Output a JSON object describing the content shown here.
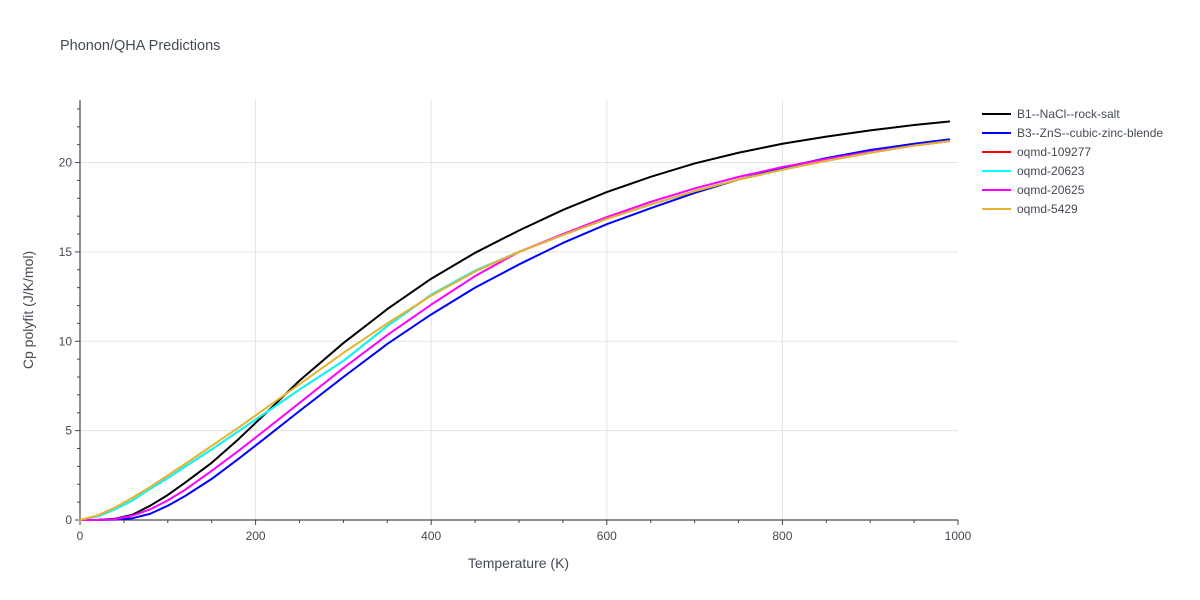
{
  "chart_data": {
    "type": "line",
    "title": "Phonon/QHA Predictions",
    "xlabel": "Temperature (K)",
    "ylabel": "Cp polyfit (J/K/mol)",
    "xlim": [
      0,
      1000
    ],
    "ylim": [
      0,
      23.5
    ],
    "xticks": [
      0,
      200,
      400,
      600,
      800,
      1000
    ],
    "xtick_labels": [
      "0",
      "200",
      "400",
      "600",
      "800",
      "1000"
    ],
    "yticks": [
      0,
      5,
      10,
      15,
      20
    ],
    "ytick_labels": [
      "0",
      "5",
      "10",
      "15",
      "20"
    ],
    "grid": true,
    "legend_position": "top-right",
    "series": [
      {
        "name": "B1--NaCl--rock-salt",
        "color": "#000000",
        "x": [
          0,
          20,
          40,
          60,
          80,
          100,
          120,
          150,
          180,
          210,
          250,
          300,
          350,
          400,
          450,
          500,
          550,
          600,
          650,
          700,
          750,
          800,
          850,
          900,
          950,
          990
        ],
        "y": [
          0,
          0.01,
          0.07,
          0.3,
          0.8,
          1.4,
          2.1,
          3.2,
          4.5,
          5.9,
          7.8,
          9.9,
          11.8,
          13.5,
          14.95,
          16.2,
          17.35,
          18.35,
          19.2,
          19.95,
          20.55,
          21.05,
          21.45,
          21.8,
          22.1,
          22.3
        ]
      },
      {
        "name": "B3--ZnS--cubic-zinc-blende",
        "color": "#0000ff",
        "x": [
          0,
          20,
          40,
          60,
          80,
          100,
          120,
          150,
          180,
          210,
          250,
          300,
          350,
          400,
          450,
          500,
          550,
          600,
          650,
          700,
          750,
          800,
          850,
          900,
          950,
          990
        ],
        "y": [
          0,
          0,
          0.02,
          0.1,
          0.35,
          0.8,
          1.35,
          2.3,
          3.4,
          4.55,
          6.1,
          8.0,
          9.85,
          11.5,
          13.0,
          14.3,
          15.5,
          16.55,
          17.45,
          18.3,
          19.05,
          19.7,
          20.25,
          20.7,
          21.05,
          21.3
        ]
      },
      {
        "name": "oqmd-109277",
        "color": "#ff0000",
        "x": [
          0,
          20,
          40,
          60,
          80,
          100,
          120,
          150,
          180,
          210,
          250,
          300,
          350,
          400,
          450,
          500,
          550,
          600,
          650,
          700,
          750,
          800,
          850,
          900,
          950,
          990
        ],
        "y": [
          0,
          0.2,
          0.6,
          1.1,
          1.75,
          2.35,
          3.0,
          3.95,
          4.95,
          5.95,
          7.3,
          8.9,
          10.85,
          12.6,
          13.95,
          15.0,
          15.95,
          16.85,
          17.65,
          18.4,
          19.05,
          19.6,
          20.1,
          20.55,
          20.95,
          21.2
        ]
      },
      {
        "name": "oqmd-20623",
        "color": "#00ffff",
        "x": [
          0,
          20,
          40,
          60,
          80,
          100,
          120,
          150,
          180,
          210,
          250,
          300,
          350,
          400,
          450,
          500,
          550,
          600,
          650,
          700,
          750,
          800,
          850,
          900,
          950,
          990
        ],
        "y": [
          0,
          0.2,
          0.6,
          1.1,
          1.75,
          2.35,
          3.0,
          3.95,
          4.95,
          5.95,
          7.3,
          8.9,
          10.85,
          12.6,
          13.95,
          15.0,
          15.95,
          16.85,
          17.65,
          18.4,
          19.05,
          19.6,
          20.1,
          20.55,
          20.95,
          21.2
        ]
      },
      {
        "name": "oqmd-20625",
        "color": "#ff00ff",
        "x": [
          0,
          20,
          40,
          60,
          80,
          100,
          120,
          150,
          180,
          210,
          250,
          300,
          350,
          400,
          450,
          500,
          550,
          600,
          650,
          700,
          750,
          800,
          850,
          900,
          950,
          990
        ],
        "y": [
          0,
          0,
          0.05,
          0.25,
          0.6,
          1.1,
          1.7,
          2.75,
          3.85,
          5.0,
          6.55,
          8.5,
          10.35,
          12.05,
          13.65,
          15.0,
          16.0,
          16.95,
          17.8,
          18.55,
          19.2,
          19.75,
          20.2,
          20.6,
          20.95,
          21.2
        ]
      },
      {
        "name": "oqmd-5429",
        "color": "#e6b32e",
        "x": [
          0,
          20,
          40,
          60,
          80,
          100,
          120,
          150,
          180,
          210,
          250,
          300,
          350,
          400,
          450,
          500,
          550,
          600,
          650,
          700,
          750,
          800,
          850,
          900,
          950,
          990
        ],
        "y": [
          0,
          0.25,
          0.7,
          1.25,
          1.85,
          2.5,
          3.15,
          4.15,
          5.15,
          6.2,
          7.6,
          9.35,
          11.0,
          12.55,
          13.9,
          15.0,
          15.95,
          16.85,
          17.65,
          18.4,
          19.05,
          19.6,
          20.1,
          20.55,
          20.95,
          21.2
        ]
      }
    ]
  }
}
